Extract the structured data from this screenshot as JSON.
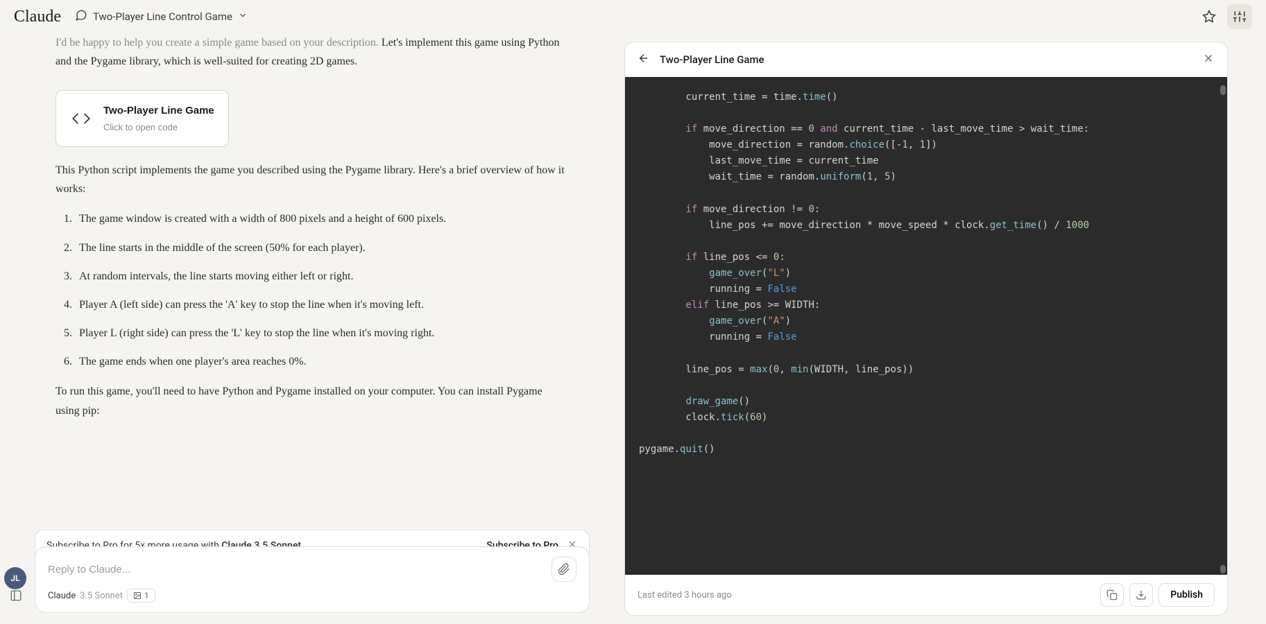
{
  "header": {
    "logo": "Claude",
    "chat_title": "Two-Player Line Control Game"
  },
  "message": {
    "intro": "I'd be happy to help you create a simple game based on your description.",
    "intro2": "Let's implement this game using Python and the Pygame library, which is well-suited for creating 2D games.",
    "artifact_title": "Two-Player Line Game",
    "artifact_subtitle": "Click to open code",
    "para1": "This Python script implements the game you described using the Pygame library. Here's a brief overview of how it works:",
    "list": [
      "The game window is created with a width of 800 pixels and a height of 600 pixels.",
      "The line starts in the middle of the screen (50% for each player).",
      "At random intervals, the line starts moving either left or right.",
      "Player A (left side) can press the 'A' key to stop the line when it's moving left.",
      "Player L (right side) can press the 'L' key to stop the line when it's moving right.",
      "The game ends when one player's area reaches 0%."
    ],
    "outro": "To run this game, you'll need to have Python and Pygame installed on your computer. You can install Pygame using pip:"
  },
  "banner": {
    "text_pre": "Subscribe to Pro for 5x more usage with ",
    "text_bold": "Claude 3.5 Sonnet",
    "link": "Subscribe to Pro"
  },
  "input": {
    "placeholder": "Reply to Claude...",
    "model": "Claude",
    "variant": "3.5 Sonnet",
    "image_count": "1"
  },
  "avatar": "JL",
  "code_panel": {
    "title": "Two-Player Line Game",
    "footer_text": "Last edited 3 hours ago",
    "publish": "Publish"
  },
  "code": {
    "lines": [
      [
        [
          "id",
          "        current_time "
        ],
        [
          "op",
          "= "
        ],
        [
          "id",
          "time"
        ],
        [
          "op",
          "."
        ],
        [
          "fn",
          "time"
        ],
        [
          "op",
          "()"
        ]
      ],
      [],
      [
        [
          "kw",
          "        if"
        ],
        [
          "id",
          " move_direction "
        ],
        [
          "op",
          "== "
        ],
        [
          "num",
          "0"
        ],
        [
          "id",
          " "
        ],
        [
          "kw",
          "and"
        ],
        [
          "id",
          " current_time "
        ],
        [
          "op",
          "- "
        ],
        [
          "id",
          "last_move_time "
        ],
        [
          "op",
          "> "
        ],
        [
          "id",
          "wait_time"
        ],
        [
          "op",
          ":"
        ]
      ],
      [
        [
          "id",
          "            move_direction "
        ],
        [
          "op",
          "= "
        ],
        [
          "id",
          "random"
        ],
        [
          "op",
          "."
        ],
        [
          "fn",
          "choice"
        ],
        [
          "op",
          "(["
        ],
        [
          "op",
          "-"
        ],
        [
          "num",
          "1"
        ],
        [
          "op",
          ", "
        ],
        [
          "num",
          "1"
        ],
        [
          "op",
          "])"
        ]
      ],
      [
        [
          "id",
          "            last_move_time "
        ],
        [
          "op",
          "= "
        ],
        [
          "id",
          "current_time"
        ]
      ],
      [
        [
          "id",
          "            wait_time "
        ],
        [
          "op",
          "= "
        ],
        [
          "id",
          "random"
        ],
        [
          "op",
          "."
        ],
        [
          "fn",
          "uniform"
        ],
        [
          "op",
          "("
        ],
        [
          "num",
          "1"
        ],
        [
          "op",
          ", "
        ],
        [
          "num",
          "5"
        ],
        [
          "op",
          ")"
        ]
      ],
      [],
      [
        [
          "kw",
          "        if"
        ],
        [
          "id",
          " move_direction "
        ],
        [
          "op",
          "!= "
        ],
        [
          "num",
          "0"
        ],
        [
          "op",
          ":"
        ]
      ],
      [
        [
          "id",
          "            line_pos "
        ],
        [
          "op",
          "+= "
        ],
        [
          "id",
          "move_direction "
        ],
        [
          "op",
          "* "
        ],
        [
          "id",
          "move_speed "
        ],
        [
          "op",
          "* "
        ],
        [
          "id",
          "clock"
        ],
        [
          "op",
          "."
        ],
        [
          "fn",
          "get_time"
        ],
        [
          "op",
          "() "
        ],
        [
          "op",
          "/ "
        ],
        [
          "num",
          "1000"
        ]
      ],
      [],
      [
        [
          "kw",
          "        if"
        ],
        [
          "id",
          " line_pos "
        ],
        [
          "op",
          "<= "
        ],
        [
          "num",
          "0"
        ],
        [
          "op",
          ":"
        ]
      ],
      [
        [
          "id",
          "            "
        ],
        [
          "fn",
          "game_over"
        ],
        [
          "op",
          "("
        ],
        [
          "str",
          "\"L\""
        ],
        [
          "op",
          ")"
        ]
      ],
      [
        [
          "id",
          "            running "
        ],
        [
          "op",
          "= "
        ],
        [
          "const",
          "False"
        ]
      ],
      [
        [
          "kw",
          "        elif"
        ],
        [
          "id",
          " line_pos "
        ],
        [
          "op",
          ">= "
        ],
        [
          "id",
          "WIDTH"
        ],
        [
          "op",
          ":"
        ]
      ],
      [
        [
          "id",
          "            "
        ],
        [
          "fn",
          "game_over"
        ],
        [
          "op",
          "("
        ],
        [
          "str",
          "\"A\""
        ],
        [
          "op",
          ")"
        ]
      ],
      [
        [
          "id",
          "            running "
        ],
        [
          "op",
          "= "
        ],
        [
          "const",
          "False"
        ]
      ],
      [],
      [
        [
          "id",
          "        line_pos "
        ],
        [
          "op",
          "= "
        ],
        [
          "fn",
          "max"
        ],
        [
          "op",
          "("
        ],
        [
          "num",
          "0"
        ],
        [
          "op",
          ", "
        ],
        [
          "fn",
          "min"
        ],
        [
          "op",
          "("
        ],
        [
          "id",
          "WIDTH"
        ],
        [
          "op",
          ", "
        ],
        [
          "id",
          "line_pos"
        ],
        [
          "op",
          "))"
        ]
      ],
      [],
      [
        [
          "id",
          "        "
        ],
        [
          "fn",
          "draw_game"
        ],
        [
          "op",
          "()"
        ]
      ],
      [
        [
          "id",
          "        clock"
        ],
        [
          "op",
          "."
        ],
        [
          "fn",
          "tick"
        ],
        [
          "op",
          "("
        ],
        [
          "num",
          "60"
        ],
        [
          "op",
          ")"
        ]
      ],
      [],
      [
        [
          "id",
          "pygame"
        ],
        [
          "op",
          "."
        ],
        [
          "fn",
          "quit"
        ],
        [
          "op",
          "()"
        ]
      ]
    ]
  },
  "colors": {
    "bg": "#f5f4f0",
    "code_bg": "#2b2b2b",
    "border": "#e0ded7"
  }
}
